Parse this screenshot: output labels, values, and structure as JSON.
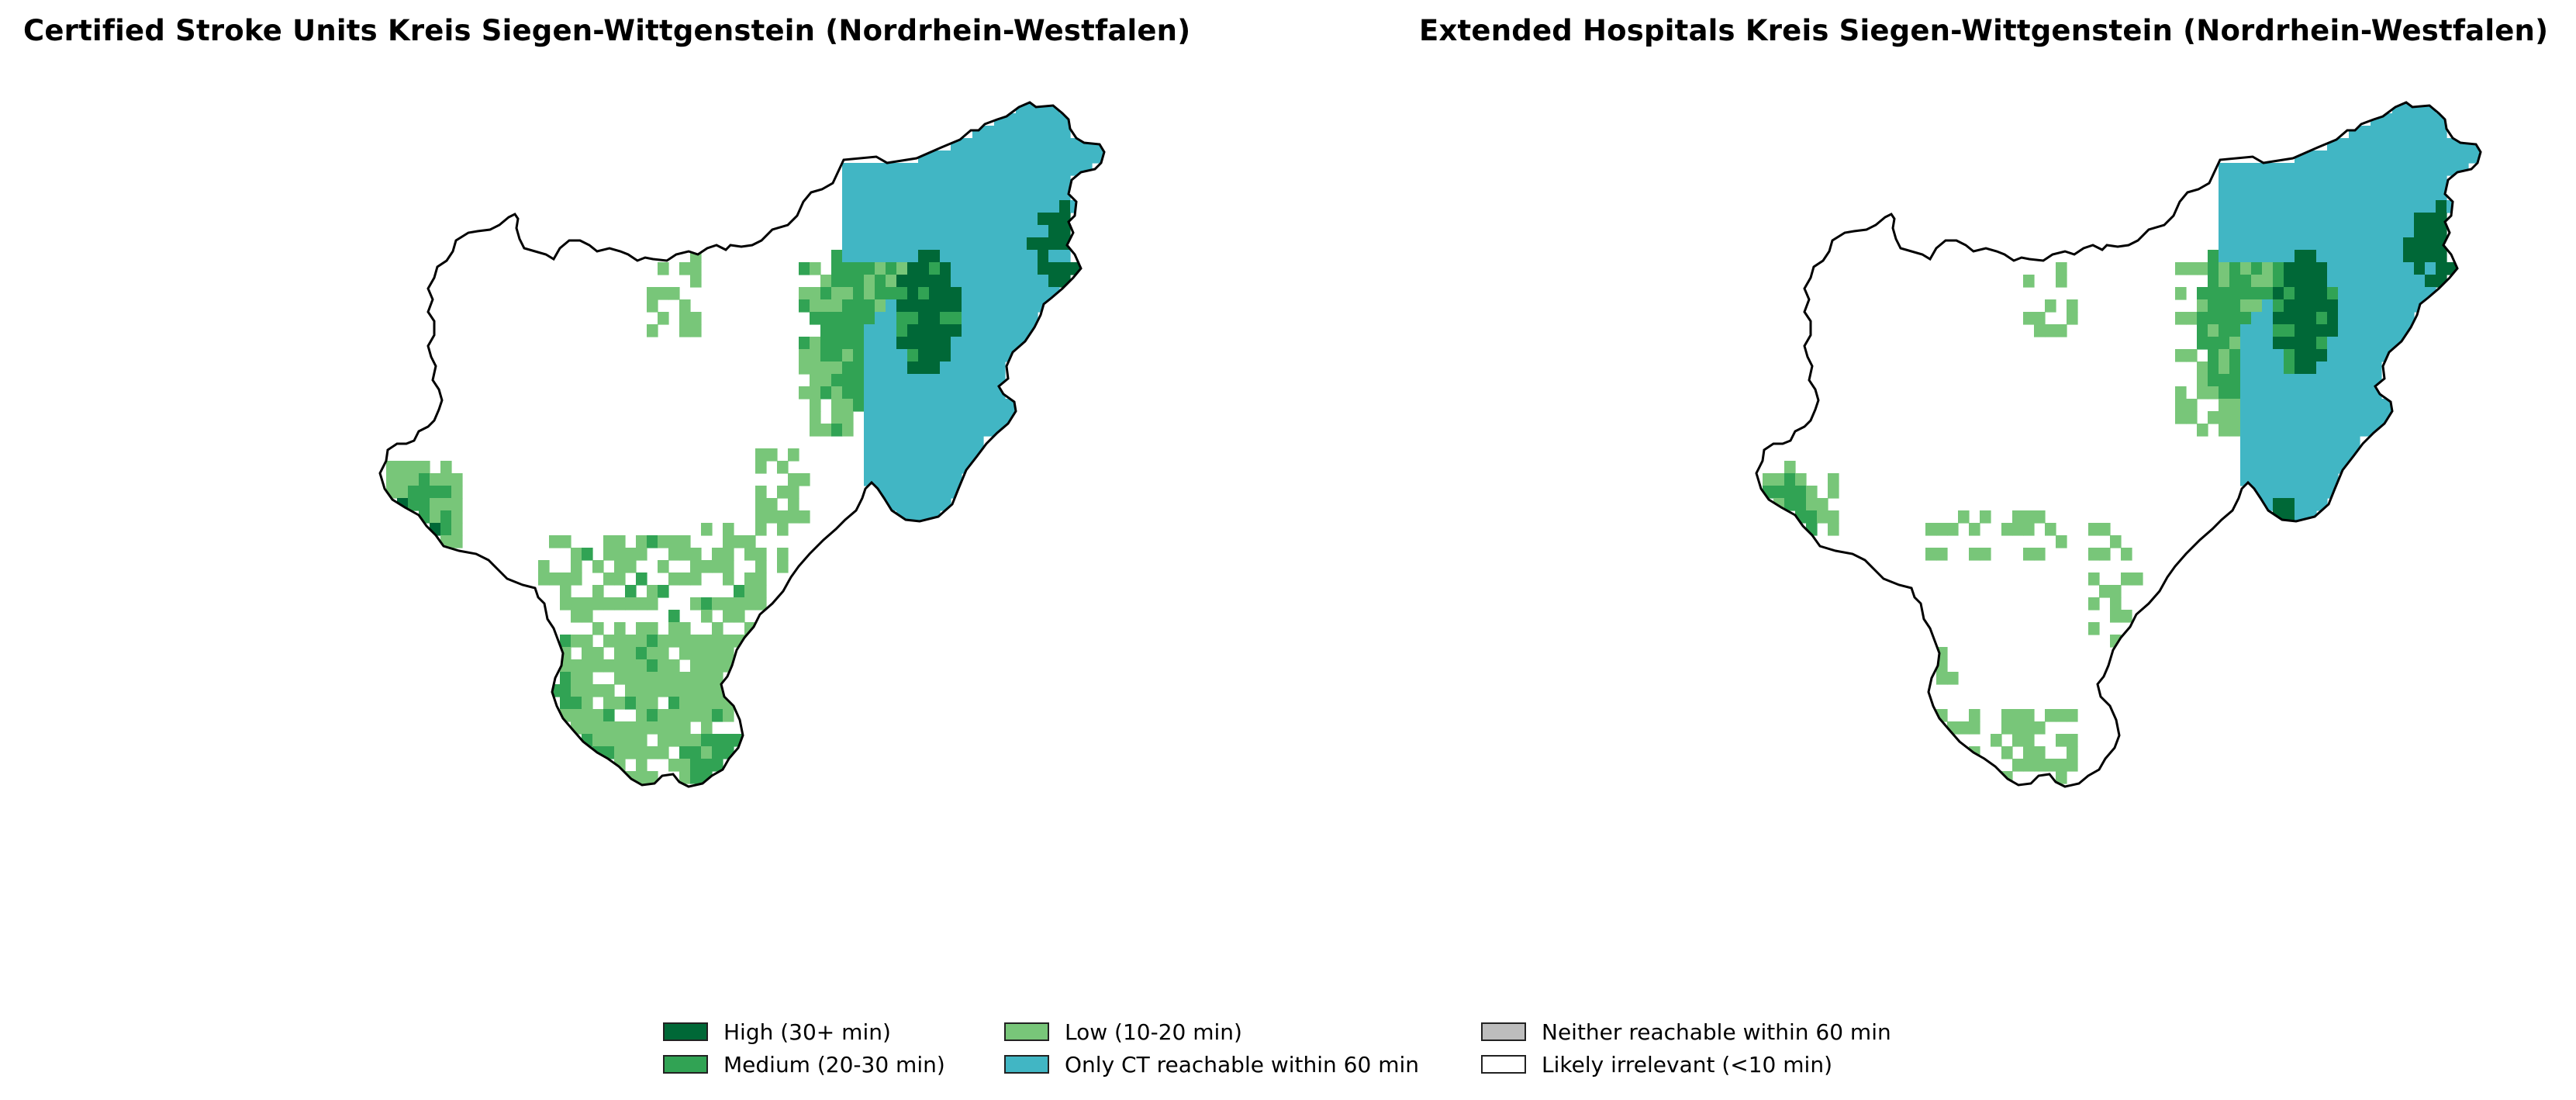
{
  "maps": [
    {
      "id": "left",
      "title": "Certified Stroke Units Kreis Siegen-Wittgenstein (Nordrhein-Westfalen)",
      "outline_color": "#000000"
    },
    {
      "id": "right",
      "title": "Extended Hospitals Kreis Siegen-Wittgenstein (Nordrhein-Westfalen)",
      "outline_color": "#000000"
    }
  ],
  "legend": [
    {
      "key": "high",
      "label": "High (30+ min)",
      "color": "#006837"
    },
    {
      "key": "medium",
      "label": "Medium (20-30 min)",
      "color": "#31a354"
    },
    {
      "key": "low",
      "label": "Low (10-20 min)",
      "color": "#78c679"
    },
    {
      "key": "ct",
      "label": "Only CT reachable within 60 min",
      "color": "#41b6c4"
    },
    {
      "key": "neither",
      "label": "Neither reachable within 60 min",
      "color": "#bdbdbd"
    },
    {
      "key": "irrelevant",
      "label": "Likely irrelevant (<10 min)",
      "color": "#ffffff"
    }
  ]
}
